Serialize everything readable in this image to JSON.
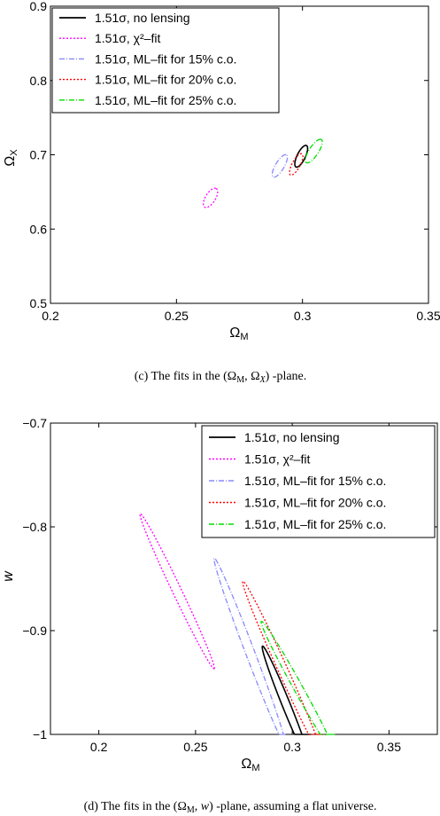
{
  "chart_data": [
    {
      "type": "line",
      "xlabel": "Ω_M",
      "ylabel": "Ω_X",
      "xlim": [
        0.2,
        0.35
      ],
      "ylim": [
        0.5,
        0.9
      ],
      "xticks": [
        "0.2",
        "0.25",
        "0.3",
        "0.35"
      ],
      "yticks": [
        "0.5",
        "0.6",
        "0.7",
        "0.8",
        "0.9"
      ],
      "legend_position": "top-left",
      "caption": "(c) The fits in the (Ω_M, Ω_X) -plane.",
      "series": [
        {
          "name": "1.51σ, no lensing",
          "color": "#000000",
          "dash": "solid",
          "contour": {
            "cx": 0.2995,
            "cy": 0.698,
            "a": 0.0155,
            "b": 0.0045,
            "angle_deg": 70
          }
        },
        {
          "name": "1.51σ, χ²–fit",
          "color": "#ff00ff",
          "dash": "dotted",
          "contour": {
            "cx": 0.2635,
            "cy": 0.642,
            "a": 0.014,
            "b": 0.0055,
            "angle_deg": 66
          }
        },
        {
          "name": "1.51σ, ML–fit for 15% c.o.",
          "color": "#8888ff",
          "dash": "dashdot",
          "contour": {
            "cx": 0.291,
            "cy": 0.685,
            "a": 0.0165,
            "b": 0.0048,
            "angle_deg": 66
          }
        },
        {
          "name": "1.51σ, ML–fit for 20% c.o.",
          "color": "#ff0000",
          "dash": "dotted",
          "contour": {
            "cx": 0.2975,
            "cy": 0.687,
            "a": 0.0155,
            "b": 0.0044,
            "angle_deg": 68
          }
        },
        {
          "name": "1.51σ, ML–fit for 25% c.o.",
          "color": "#00dd00",
          "dash": "dashdot",
          "contour": {
            "cx": 0.3045,
            "cy": 0.705,
            "a": 0.0175,
            "b": 0.0052,
            "angle_deg": 64
          }
        }
      ]
    },
    {
      "type": "line",
      "xlabel": "Ω_M",
      "ylabel": "w",
      "xlim": [
        0.175,
        0.375
      ],
      "ylim": [
        -1.0,
        -0.7
      ],
      "xticks": [
        "0.2",
        "0.25",
        "0.3",
        "0.35"
      ],
      "yticks": [
        "−0.7",
        "−0.8",
        "−0.9",
        "−1"
      ],
      "legend_position": "top-right",
      "caption": "(d) The fits in the (Ω_M, w) -plane, assuming a flat universe.",
      "series": [
        {
          "name": "1.51σ, no lensing",
          "color": "#000000",
          "dash": "solid",
          "contour": {
            "cx": 0.297,
            "cy": -0.972,
            "a": 0.06,
            "b": 0.0032,
            "angle_deg": -72
          }
        },
        {
          "name": "1.51σ, χ²–fit",
          "color": "#ff00ff",
          "dash": "dotted",
          "contour": {
            "cx": 0.2405,
            "cy": -0.862,
            "a": 0.08,
            "b": 0.0036,
            "angle_deg": -69
          }
        },
        {
          "name": "1.51σ, ML–fit for 15% c.o.",
          "color": "#8888ff",
          "dash": "dashdot",
          "contour": {
            "cx": 0.278,
            "cy": -0.92,
            "a": 0.094,
            "b": 0.0036,
            "angle_deg": -73
          }
        },
        {
          "name": "1.51σ, ML–fit for 20% c.o.",
          "color": "#ff0000",
          "dash": "dotted",
          "contour": {
            "cx": 0.295,
            "cy": -0.937,
            "a": 0.09,
            "b": 0.0038,
            "angle_deg": -70
          }
        },
        {
          "name": "1.51σ, ML–fit for 25% c.o.",
          "color": "#00dd00",
          "dash": "dashdot",
          "contour": {
            "cx": 0.303,
            "cy": -0.955,
            "a": 0.07,
            "b": 0.0036,
            "angle_deg": -66
          }
        }
      ]
    }
  ]
}
